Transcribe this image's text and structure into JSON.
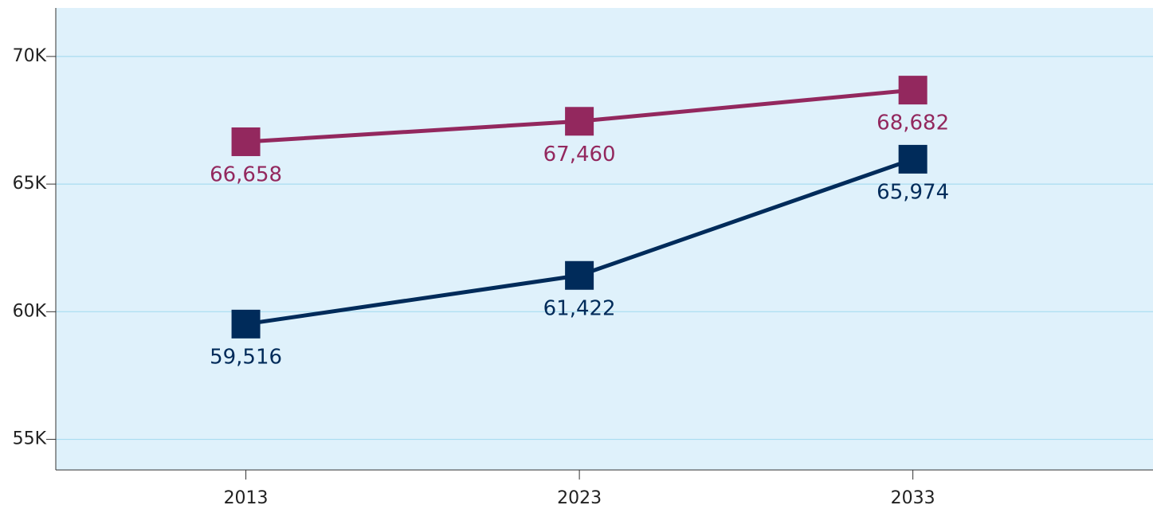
{
  "chart_data": {
    "type": "line",
    "x": [
      2013,
      2023,
      2033
    ],
    "xlim": [
      2007.3,
      2040.2
    ],
    "xticks": [
      2013,
      2023,
      2033
    ],
    "ylim": [
      53800,
      71900
    ],
    "yticks": [
      {
        "value": 55000,
        "label": "55K"
      },
      {
        "value": 60000,
        "label": "60K"
      },
      {
        "value": 65000,
        "label": "65K"
      },
      {
        "value": 70000,
        "label": "70K"
      }
    ],
    "grid": true,
    "series": [
      {
        "color": "#93285e",
        "values": [
          66658,
          67460,
          68682
        ],
        "value_labels": [
          "66,658",
          "67,460",
          "68,682"
        ]
      },
      {
        "color": "#002b5a",
        "values": [
          59516,
          61422,
          65974
        ],
        "value_labels": [
          "59,516",
          "61,422",
          "65,974"
        ]
      }
    ]
  }
}
